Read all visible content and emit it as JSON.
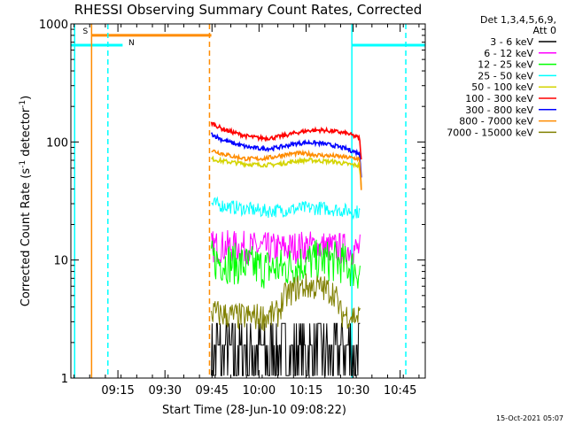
{
  "chart_data": {
    "type": "line",
    "title": "RHESSI Observing Summary Count Rates, Corrected",
    "xlabel": "Start Time (28-Jun-10 09:08:22)",
    "ylabel_pre": "Corrected Count Rate (s",
    "ylabel_sup1": "-1",
    "ylabel_mid": " detector",
    "ylabel_sup2": "-1",
    "ylabel_post": ")",
    "yscale": "log",
    "ylim": [
      1,
      1000
    ],
    "xlim_min": [
      540,
      653
    ],
    "ytick_labels": [
      {
        "v": 1,
        "label": "1"
      },
      {
        "v": 10,
        "label": "10"
      },
      {
        "v": 100,
        "label": "100"
      },
      {
        "v": 1000,
        "label": "1000"
      }
    ],
    "xtick_labels": [
      {
        "v": 555,
        "label": "09:15"
      },
      {
        "v": 570,
        "label": "09:30"
      },
      {
        "v": 585,
        "label": "09:45"
      },
      {
        "v": 600,
        "label": "10:00"
      },
      {
        "v": 615,
        "label": "10:15"
      },
      {
        "v": 630,
        "label": "10:30"
      },
      {
        "v": 645,
        "label": "10:45"
      }
    ],
    "legend": {
      "placement": "right",
      "header1": "Det 1,3,4,5,6,9,",
      "header2": "Att 0"
    },
    "series": [
      {
        "name": "3 - 6 keV",
        "color": "#000000",
        "style": "noisy",
        "x": [
          584.8,
          589,
          594,
          598,
          602,
          604,
          606,
          608,
          612,
          618,
          622,
          626,
          630,
          632.2
        ],
        "values": [
          2.9,
          2.9,
          2.9,
          2.9,
          2.9,
          2.9,
          2.9,
          2.9,
          2.9,
          2.9,
          2.9,
          2.9,
          2.9,
          2.9
        ],
        "low": [
          1.05,
          1.05,
          1.05,
          1.05,
          1.05,
          1.05,
          1.05,
          1.05,
          1.05,
          1.05,
          1.05,
          1.05,
          1.05,
          1.05
        ],
        "mid": 1.9
      },
      {
        "name": "6 - 12 keV",
        "color": "#ff00ff",
        "style": "band",
        "x": [
          584.8,
          590,
          596,
          602,
          608,
          614,
          620,
          626,
          632.2
        ],
        "values": [
          13,
          13,
          12.8,
          12.5,
          12.5,
          13,
          13,
          12.5,
          12.2
        ],
        "spread": 0.14
      },
      {
        "name": "12 - 25 keV",
        "color": "#00ff00",
        "style": "band",
        "x": [
          584.8,
          590,
          596,
          602,
          608,
          614,
          620,
          626,
          632.2
        ],
        "values": [
          10,
          9.5,
          9,
          8.5,
          8.5,
          9.5,
          10,
          9.5,
          8
        ],
        "spread": 0.18
      },
      {
        "name": "25 - 50 keV",
        "color": "#00ffff",
        "style": "band",
        "x": [
          584.8,
          590,
          596,
          602,
          608,
          614,
          620,
          626,
          632.2
        ],
        "values": [
          30,
          28.5,
          27,
          26,
          26.5,
          27.5,
          27.5,
          26.5,
          25.5
        ],
        "spread": 0.06
      },
      {
        "name": "50 - 100 keV",
        "color": "#d4d400",
        "style": "line",
        "x": [
          584.8,
          588,
          592,
          596,
          600,
          604,
          608,
          612,
          616,
          620,
          624,
          628,
          632,
          632.6
        ],
        "values": [
          72,
          69,
          67,
          65,
          64,
          64,
          66,
          69,
          70,
          69,
          68,
          65,
          63,
          40
        ]
      },
      {
        "name": "100 - 300 keV",
        "color": "#ff0000",
        "style": "line",
        "x": [
          584.8,
          588,
          592,
          596,
          600,
          604,
          608,
          612,
          616,
          620,
          624,
          628,
          632,
          632.6
        ],
        "values": [
          145,
          130,
          120,
          112,
          108,
          108,
          113,
          120,
          125,
          126,
          123,
          118,
          108,
          70
        ]
      },
      {
        "name": "300 - 800 keV",
        "color": "#0000ff",
        "style": "line",
        "x": [
          584.8,
          588,
          592,
          596,
          600,
          604,
          608,
          612,
          616,
          620,
          624,
          628,
          632,
          632.6
        ],
        "values": [
          117,
          105,
          97,
          91,
          88,
          88,
          92,
          97,
          99,
          97,
          93,
          87,
          80,
          52
        ]
      },
      {
        "name": "800 - 7000 keV",
        "color": "#ff8c00",
        "style": "line",
        "x": [
          584.8,
          588,
          592,
          596,
          600,
          604,
          608,
          612,
          616,
          620,
          624,
          628,
          632,
          632.6
        ],
        "values": [
          85,
          80,
          75,
          72,
          72,
          74,
          78,
          80,
          79,
          77,
          76,
          74,
          72,
          40
        ]
      },
      {
        "name": "7000 - 15000 keV",
        "color": "#808000",
        "style": "band",
        "x": [
          584.8,
          590,
          594,
          598,
          602,
          606,
          608,
          612,
          616,
          620,
          624,
          626,
          632.2
        ],
        "values": [
          3.6,
          3.4,
          3.3,
          3.3,
          3.3,
          3.5,
          4.8,
          5.8,
          6,
          5.8,
          5.3,
          3.5,
          3.3
        ],
        "spread": 0.12
      }
    ],
    "flags": [
      {
        "label": "S",
        "type": "saa",
        "color": "#ff8c00",
        "start": 546.6,
        "end": 584.8,
        "level": 800
      },
      {
        "label": "N",
        "type": "night",
        "color": "#00ffff",
        "start": 540,
        "end": 556.5,
        "level": 660
      },
      {
        "label": "",
        "type": "night",
        "color": "#00ffff",
        "start": 629.5,
        "end": 653,
        "level": 660
      }
    ],
    "night_segments": [
      {
        "start": 540,
        "end": 556.5
      },
      {
        "start": 629.5,
        "end": 653
      }
    ],
    "vlines": [
      {
        "x": 541.2,
        "color": "#00ffff",
        "style": "solid"
      },
      {
        "x": 546.6,
        "color": "#ff8c00",
        "style": "solid"
      },
      {
        "x": 551.8,
        "color": "#00ffff",
        "style": "dashed"
      },
      {
        "x": 584.2,
        "color": "#ff8c00",
        "style": "dashed"
      },
      {
        "x": 629.6,
        "color": "#00ffff",
        "style": "solid"
      },
      {
        "x": 646.8,
        "color": "#00ffff",
        "style": "dashed"
      }
    ]
  },
  "footer": {
    "timestamp": "15-Oct-2021 05:07"
  }
}
